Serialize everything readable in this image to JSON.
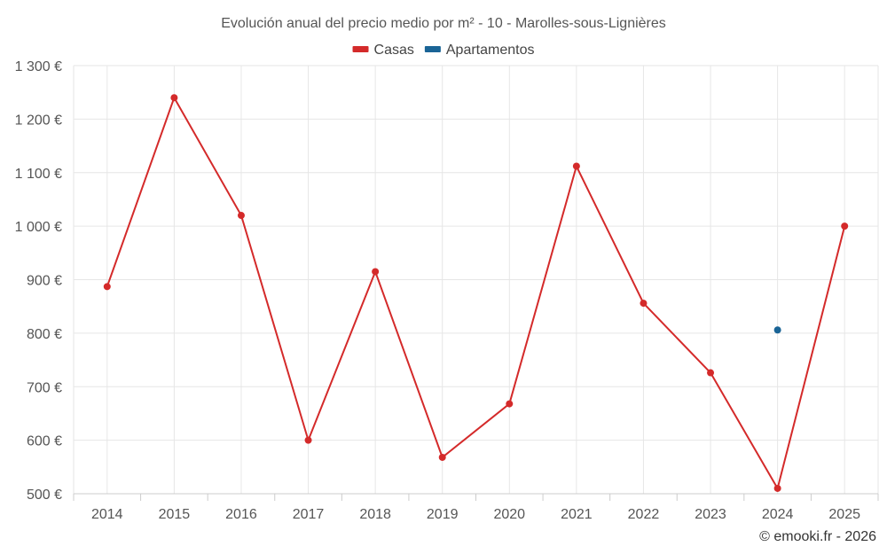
{
  "chart_data": {
    "type": "line",
    "title": "Evolución anual del precio medio por m² - 10 - Marolles-sous-Lignières",
    "categories": [
      "2014",
      "2015",
      "2016",
      "2017",
      "2018",
      "2019",
      "2020",
      "2021",
      "2022",
      "2023",
      "2024",
      "2025"
    ],
    "ylim": [
      500,
      1300
    ],
    "yticks": [
      500,
      600,
      700,
      800,
      900,
      1000,
      1100,
      1200,
      1300
    ],
    "ytick_labels": [
      "500 €",
      "600 €",
      "700 €",
      "800 €",
      "900 €",
      "1 000 €",
      "1 100 €",
      "1 200 €",
      "1 300 €"
    ],
    "xlabel": "",
    "ylabel": "",
    "grid": true,
    "legend_position": "top-center",
    "series": [
      {
        "name": "Casas",
        "color": "#d42a2a",
        "values": [
          887,
          1240,
          1020,
          600,
          915,
          568,
          668,
          1112,
          856,
          726,
          510,
          1000
        ]
      },
      {
        "name": "Apartamentos",
        "color": "#1a6496",
        "values": [
          null,
          null,
          null,
          null,
          null,
          null,
          null,
          null,
          null,
          null,
          806,
          null
        ]
      }
    ]
  },
  "credit": "© emooki.fr - 2026"
}
